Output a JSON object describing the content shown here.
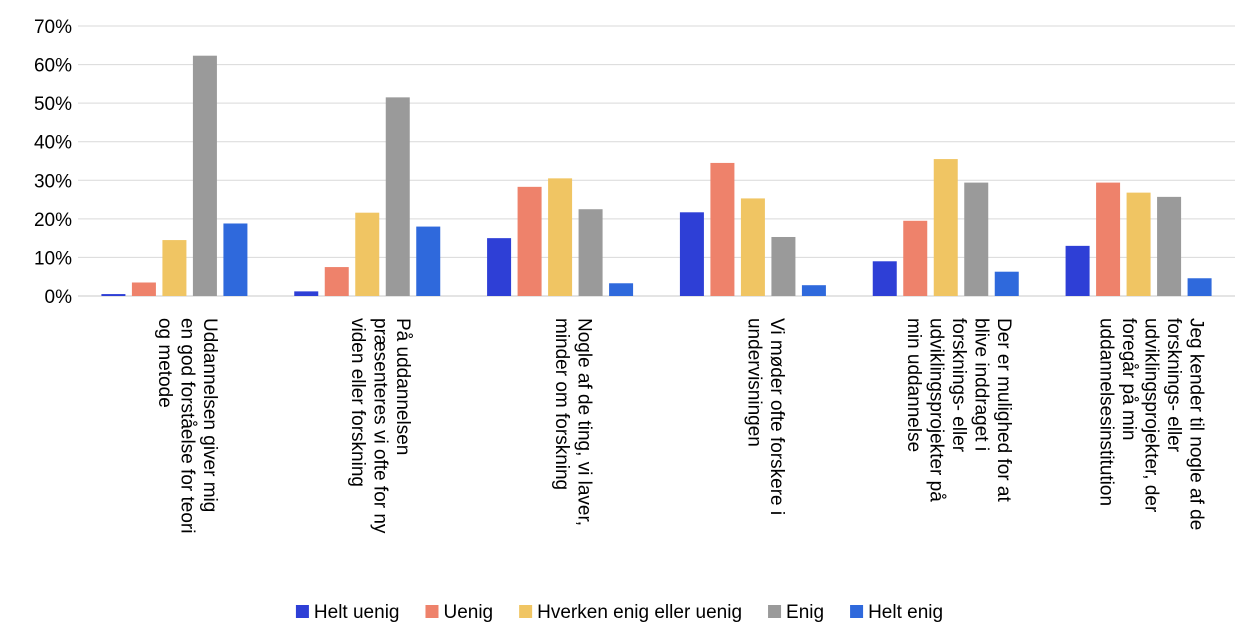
{
  "chart_data": {
    "type": "bar",
    "categories": [
      [
        "Uddannelsen giver mig",
        "en god forståelse for teori",
        "og metode"
      ],
      [
        "På uddannelsen",
        "præsenteres vi ofte for ny",
        "viden eller forskning"
      ],
      [
        "Nogle af de ting, vi laver,",
        "minder om forskning"
      ],
      [
        "Vi møder ofte forskere i",
        "undervisningen"
      ],
      [
        "Der er mulighed for at",
        "blive inddraget i",
        "forsknings- eller",
        "udviklingsprojekter på",
        "min uddannelse"
      ],
      [
        "Jeg kender til nogle af de",
        "forsknings- eller",
        "udviklingsprojekter, der",
        "foregår på min",
        "uddannelsesinstitution"
      ]
    ],
    "series": [
      {
        "name": "Helt uenig",
        "color": "#2e3fd6",
        "values": [
          0.5,
          1.2,
          15,
          21.7,
          9,
          13
        ]
      },
      {
        "name": "Uenig",
        "color": "#ee826b",
        "values": [
          3.5,
          7.5,
          28.3,
          34.5,
          19.5,
          29.4
        ]
      },
      {
        "name": "Hverken enig eller uenig",
        "color": "#f0c563",
        "values": [
          14.5,
          21.6,
          30.5,
          25.3,
          35.5,
          26.8
        ]
      },
      {
        "name": "Enig",
        "color": "#9a9a9a",
        "values": [
          62.3,
          51.5,
          22.5,
          15.3,
          29.4,
          25.7
        ]
      },
      {
        "name": "Helt enig",
        "color": "#2f69dc",
        "values": [
          18.8,
          18,
          3.3,
          2.8,
          6.3,
          4.6
        ]
      }
    ],
    "y_ticks": [
      "0%",
      "10%",
      "20%",
      "30%",
      "40%",
      "50%",
      "60%",
      "70%"
    ],
    "ylim": [
      0,
      70
    ],
    "grid": true,
    "legend_position": "bottom"
  }
}
